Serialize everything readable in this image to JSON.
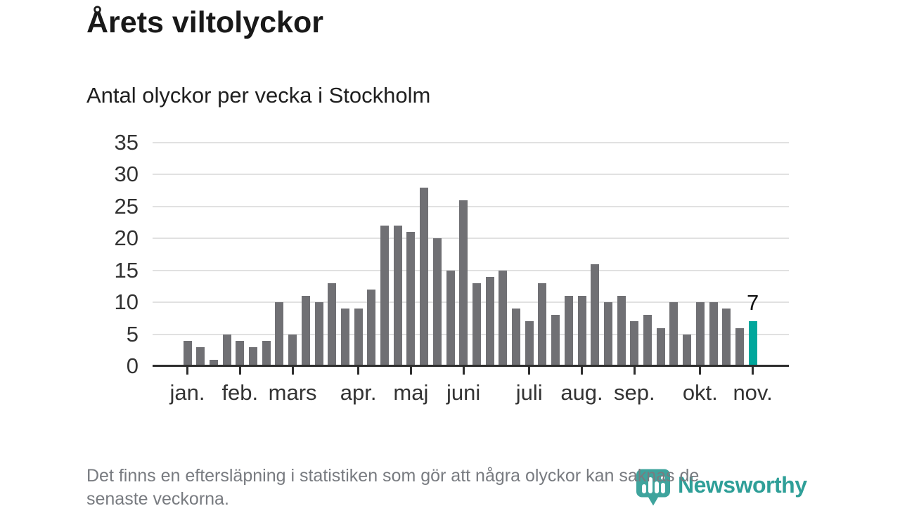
{
  "header": {
    "title": "Årets viltolyckor",
    "subtitle": "Antal olyckor per vecka i Stockholm"
  },
  "chart_data": {
    "type": "bar",
    "title": "Årets viltolyckor",
    "subtitle": "Antal olyckor per vecka i Stockholm",
    "x_unit": "vecka",
    "values": [
      4,
      3,
      1,
      5,
      4,
      3,
      4,
      10,
      5,
      11,
      10,
      13,
      9,
      9,
      12,
      22,
      22,
      21,
      28,
      20,
      15,
      26,
      13,
      14,
      15,
      9,
      7,
      13,
      8,
      11,
      11,
      16,
      10,
      11,
      7,
      8,
      6,
      10,
      5,
      10,
      10,
      9,
      6,
      7
    ],
    "ylim": [
      0,
      35
    ],
    "y_ticks": [
      0,
      5,
      10,
      15,
      20,
      25,
      30,
      35
    ],
    "month_ticks": [
      {
        "label": "jan.",
        "week": 1
      },
      {
        "label": "feb.",
        "week": 5
      },
      {
        "label": "mars",
        "week": 9
      },
      {
        "label": "apr.",
        "week": 14
      },
      {
        "label": "maj",
        "week": 18
      },
      {
        "label": "juni",
        "week": 22
      },
      {
        "label": "juli",
        "week": 27
      },
      {
        "label": "aug.",
        "week": 31
      },
      {
        "label": "sep.",
        "week": 35
      },
      {
        "label": "okt.",
        "week": 40
      },
      {
        "label": "nov.",
        "week": 44
      }
    ],
    "grid": true,
    "legend": "none",
    "bar_color": "#707074",
    "highlight_color": "#00a79c",
    "highlight_last_bar": true,
    "last_value_label": "7"
  },
  "footer": {
    "note_lines": [
      "Det finns en eftersläpning i statistiken som gör att några olyckor kan saknas de",
      "senaste veckorna."
    ],
    "logo_text": "Newsworthy",
    "logo_color": "#2f9f98"
  }
}
